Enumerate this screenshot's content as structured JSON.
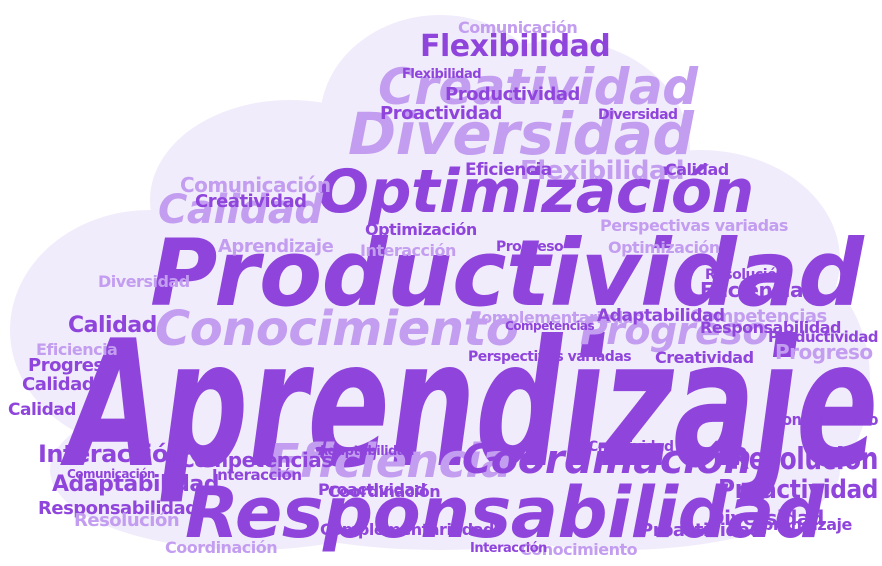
{
  "colors": {
    "primary": "#8f45dc",
    "light": "#c39df0",
    "pale": "#e2cdf8",
    "cloud": "#f1ecfb"
  },
  "words": {
    "aprendizaje": "Aprendizaje",
    "productividad": "Productividad",
    "responsabilidad": "Responsabilidad",
    "optimizacion": "Optimización",
    "diversidad": "Diversidad",
    "creatividad": "Creatividad",
    "conocimiento": "Conocimiento",
    "flexibilidad": "Flexibilidad",
    "comunicacion": "Comunicación",
    "calidad": "Calidad",
    "coordinacion": "Coordinación",
    "eficiencia": "Eficiencia",
    "progreso": "Progreso",
    "resolucion": "Resolución",
    "interaccion": "Interacción",
    "adaptabilidad": "Adaptabilidad",
    "competencias": "Competencias",
    "proactividad": "Proactividad",
    "perspectivas": "Perspectivas variadas",
    "complementariedad": "Complementariedad"
  }
}
